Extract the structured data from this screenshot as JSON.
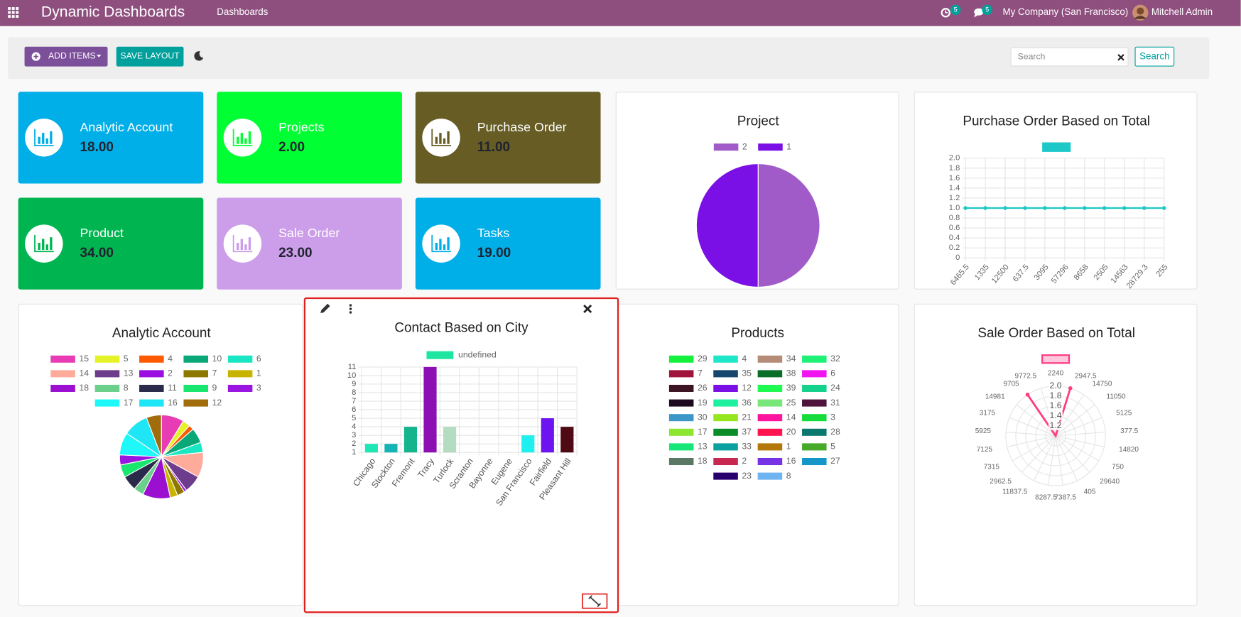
{
  "navbar": {
    "app_name": "Dynamic Dashboards",
    "menu": "Dashboards",
    "activity_badge": "5",
    "message_badge": "5",
    "company": "My Company (San Francisco)",
    "user": "Mitchell Admin"
  },
  "toolbar": {
    "add_items": "ADD ITEMS",
    "save_layout": "SAVE LAYOUT",
    "search_placeholder": "Search",
    "search_button": "Search"
  },
  "tiles": [
    {
      "title": "Analytic Account",
      "value": "18.00",
      "color": "#00aee8"
    },
    {
      "title": "Projects",
      "value": "2.00",
      "color": "#00ff33"
    },
    {
      "title": "Purchase Order",
      "value": "11.00",
      "color": "#665c24"
    },
    {
      "title": "Product",
      "value": "34.00",
      "color": "#00b550"
    },
    {
      "title": "Sale Order",
      "value": "23.00",
      "color": "#cc9de8"
    },
    {
      "title": "Tasks",
      "value": "19.00",
      "color": "#00aee8"
    }
  ],
  "charts": [
    {
      "type": "pie",
      "title": "Project",
      "categories": [
        "2",
        "1"
      ],
      "values": [
        1,
        1
      ],
      "colors": [
        "#a05bc8",
        "#7a0fe6"
      ]
    },
    {
      "type": "line",
      "title": "Purchase Order Based on Total",
      "categories": [
        "6465.5",
        "1335",
        "12500",
        "637.5",
        "3095",
        "57296",
        "8658",
        "2505",
        "14563",
        "28729.3",
        "255"
      ],
      "series": [
        {
          "color": "#1ec8c8",
          "values": [
            1,
            1,
            1,
            1,
            1,
            1,
            1,
            1,
            1,
            1,
            1
          ]
        }
      ],
      "ylim": [
        0,
        2
      ],
      "yticks": [
        0,
        0.2,
        0.4,
        0.6,
        0.8,
        {
          "value": 1,
          "label": "1.0"
        },
        1.2,
        1.4,
        1.6,
        1.8,
        {
          "value": 2,
          "label": "2.0"
        }
      ],
      "grid": true
    },
    {
      "type": "pie",
      "title": "Analytic Account",
      "categories": [
        "15",
        "5",
        "4",
        "10",
        "6",
        "14",
        "13",
        "2",
        "7",
        "1",
        "18",
        "8",
        "11",
        "9",
        "3",
        "17",
        "16",
        "12"
      ],
      "values": [
        9,
        3,
        2,
        6,
        4,
        10,
        7,
        1,
        3,
        3,
        11,
        4,
        6,
        5,
        4,
        9,
        10,
        6
      ],
      "colors": [
        "#e83cb4",
        "#e5f227",
        "#ff5a00",
        "#0aa778",
        "#19e6c3",
        "#ffab9b",
        "#6e3c8c",
        "#9a0fe0",
        "#8c7800",
        "#c8b400",
        "#9b0fd0",
        "#6ad08a",
        "#2a2a4a",
        "#19e66e",
        "#9a15e0",
        "#1ef8f8",
        "#1ee6f5",
        "#a06c0c"
      ]
    },
    {
      "type": "pie",
      "title": "Products",
      "categories": [
        "29",
        "4",
        "34",
        "32",
        "7",
        "35",
        "38",
        "6",
        "26",
        "12",
        "39",
        "24",
        "19",
        "36",
        "25",
        "31",
        "30",
        "21",
        "14",
        "3",
        "17",
        "37",
        "20",
        "28",
        "13",
        "33",
        "1",
        "5",
        "18",
        "2",
        "16",
        "27",
        "23",
        "8"
      ],
      "colors": [
        "#14f03c",
        "#1ee6c8",
        "#b48c78",
        "#1ef078",
        "#a0143c",
        "#14466e",
        "#0a6e28",
        "#f014f0",
        "#3c1423",
        "#7a0fe6",
        "#1efa50",
        "#14d28c",
        "#1e0a1e",
        "#1ef0a0",
        "#78e678",
        "#50143c",
        "#3c96c8",
        "#96e61e",
        "#ff14a0",
        "#14dc3c",
        "#8ce632",
        "#0a8c28",
        "#ff1450",
        "#0a786e",
        "#14e678",
        "#0aa0a0",
        "#b4780a",
        "#46aa28",
        "#5a7864",
        "#c82850",
        "#7832e6",
        "#1496c8",
        "#28006e",
        "#6eb4f0"
      ]
    },
    {
      "type": "polar",
      "title": "Sale Order Based on Total",
      "categories": [
        "2240",
        "2947.5",
        "14750",
        "11050",
        "5125",
        "377.5",
        "14820",
        "750",
        "29640",
        "405",
        "7387.5",
        "8287.5",
        "11837.5",
        "2962.5",
        "7315",
        "7125",
        "5925",
        "3175",
        "14981",
        "9705",
        "9772.5"
      ],
      "values": [
        1,
        2,
        1,
        1,
        1,
        1,
        1,
        1,
        1,
        1,
        1,
        1,
        1,
        1,
        1,
        1,
        1,
        1,
        1,
        2,
        1
      ],
      "color": "#ff3c82",
      "fill": "#ffc8dc",
      "rlim": [
        1,
        2
      ],
      "rticks": [
        1.2,
        1.4,
        1.6,
        1.8,
        {
          "value": 2,
          "label": "2.0"
        }
      ]
    },
    {
      "type": "bar",
      "title": "Contact Based on City",
      "categories": [
        "Chicago",
        "Stockton",
        "Fremont",
        "Tracy",
        "Turlock",
        "Scranton",
        "Bayonne",
        "Eugene",
        "San Francisco",
        "Fairfield",
        "Pleasant Hill"
      ],
      "series": [
        {
          "name": "undefined",
          "color": "#1ee6a0",
          "values": [
            2,
            2,
            4,
            11,
            4,
            1,
            1,
            1,
            3,
            5,
            4
          ]
        }
      ],
      "colors": [
        "#1ee6b4",
        "#14b4b4",
        "#14b48c",
        "#8c0fb4",
        "#b4dcc0",
        "#cccccc",
        "#cccccc",
        "#cccccc",
        "#1ef0f0",
        "#6e14f0",
        "#500a14"
      ],
      "ylim": [
        1,
        11
      ],
      "yticks": [
        1,
        2,
        3,
        4,
        5,
        6,
        7,
        8,
        9,
        10,
        11
      ],
      "grid": true
    }
  ]
}
